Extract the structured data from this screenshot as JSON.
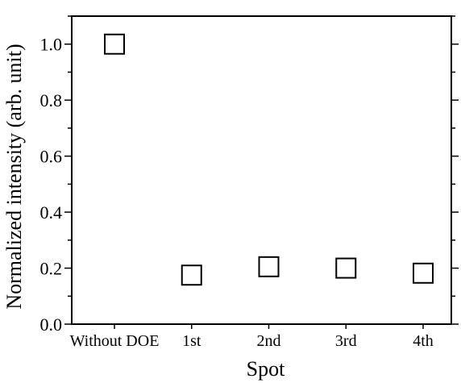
{
  "chart_data": {
    "type": "scatter",
    "title": "",
    "xlabel": "Spot",
    "ylabel": "Normalized intensity (arb. unit)",
    "categories": [
      "Without DOE",
      "1st",
      "2nd",
      "3rd",
      "4th"
    ],
    "values": [
      1.0,
      0.175,
      0.205,
      0.2,
      0.182
    ],
    "ylim": [
      0.0,
      1.1
    ],
    "yticks": [
      0.0,
      0.2,
      0.4,
      0.6,
      0.8,
      1.0
    ],
    "ytick_labels": [
      "0.0",
      "0.2",
      "0.4",
      "0.6",
      "0.8",
      "1.0"
    ],
    "marker": "open-square",
    "marker_color": "#000000",
    "grid": false,
    "legend": "none"
  }
}
